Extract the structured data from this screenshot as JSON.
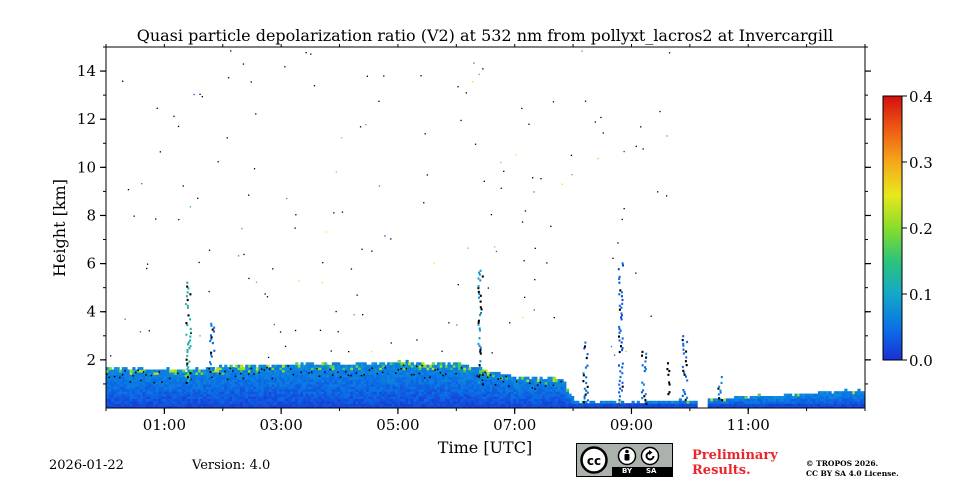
{
  "chart_data": {
    "type": "heatmap",
    "title": "Quasi particle depolarization ratio (V2) at 532 nm from pollyxt_lacros2 at Invercargill",
    "xlabel": "Time [UTC]",
    "ylabel": "Height [km]",
    "xlim_hours": [
      0.0,
      13.0
    ],
    "ylim_km": [
      0.0,
      15.0
    ],
    "x_ticks": [
      {
        "hour": 1,
        "label": "01:00"
      },
      {
        "hour": 3,
        "label": "03:00"
      },
      {
        "hour": 5,
        "label": "05:00"
      },
      {
        "hour": 7,
        "label": "07:00"
      },
      {
        "hour": 9,
        "label": "09:00"
      },
      {
        "hour": 11,
        "label": "11:00"
      }
    ],
    "y_ticks": [
      {
        "km": 2,
        "label": "2"
      },
      {
        "km": 4,
        "label": "4"
      },
      {
        "km": 6,
        "label": "6"
      },
      {
        "km": 8,
        "label": "8"
      },
      {
        "km": 10,
        "label": "10"
      },
      {
        "km": 12,
        "label": "12"
      },
      {
        "km": 14,
        "label": "14"
      }
    ],
    "colorbar": {
      "range": [
        0.0,
        0.4
      ],
      "ticks": [
        {
          "value": 0.0,
          "label": "0.0"
        },
        {
          "value": 0.1,
          "label": "0.1"
        },
        {
          "value": 0.2,
          "label": "0.2"
        },
        {
          "value": 0.3,
          "label": "0.3"
        },
        {
          "value": 0.4,
          "label": "0.4"
        }
      ],
      "colormap": [
        "#1a2fd6",
        "#0a74e6",
        "#14a8c8",
        "#2cc47a",
        "#88dd2a",
        "#e8e81e",
        "#f5a81a",
        "#ef5a14",
        "#d41010"
      ]
    },
    "boundary_layer_top_km": [
      [
        0.0,
        1.6
      ],
      [
        1.5,
        1.55
      ],
      [
        2.0,
        1.7
      ],
      [
        3.0,
        1.75
      ],
      [
        4.0,
        1.8
      ],
      [
        5.0,
        1.85
      ],
      [
        6.0,
        1.8
      ],
      [
        7.0,
        1.25
      ],
      [
        7.8,
        1.15
      ],
      [
        8.0,
        0.2
      ],
      [
        10.0,
        0.25
      ],
      [
        11.0,
        0.45
      ],
      [
        13.0,
        0.7
      ]
    ],
    "gaps_hours": [
      [
        10.1,
        10.3
      ]
    ],
    "plumes": [
      {
        "hour": 1.4,
        "top_km": 5.2,
        "value": 0.12
      },
      {
        "hour": 1.8,
        "top_km": 3.5,
        "value": 0.05
      },
      {
        "hour": 6.4,
        "top_km": 5.8,
        "value": 0.08
      },
      {
        "hour": 8.2,
        "top_km": 2.8,
        "value": 0.04
      },
      {
        "hour": 8.8,
        "top_km": 6.0,
        "value": 0.03
      },
      {
        "hour": 9.2,
        "top_km": 2.4,
        "value": 0.05
      },
      {
        "hour": 9.6,
        "top_km": 2.0,
        "value": 0.05
      },
      {
        "hour": 9.9,
        "top_km": 3.0,
        "value": 0.05
      },
      {
        "hour": 10.5,
        "top_km": 1.4,
        "value": 0.06
      }
    ]
  },
  "footer": {
    "date": "2026-01-22",
    "version": "Version: 4.0",
    "preliminary_line1": "Preliminary",
    "preliminary_line2": "Results.",
    "copyright_line1": "© TROPOS 2026.",
    "copyright_line2": "CC BY SA 4.0 License.",
    "cc_badge": {
      "by": "BY",
      "sa": "SA"
    }
  }
}
